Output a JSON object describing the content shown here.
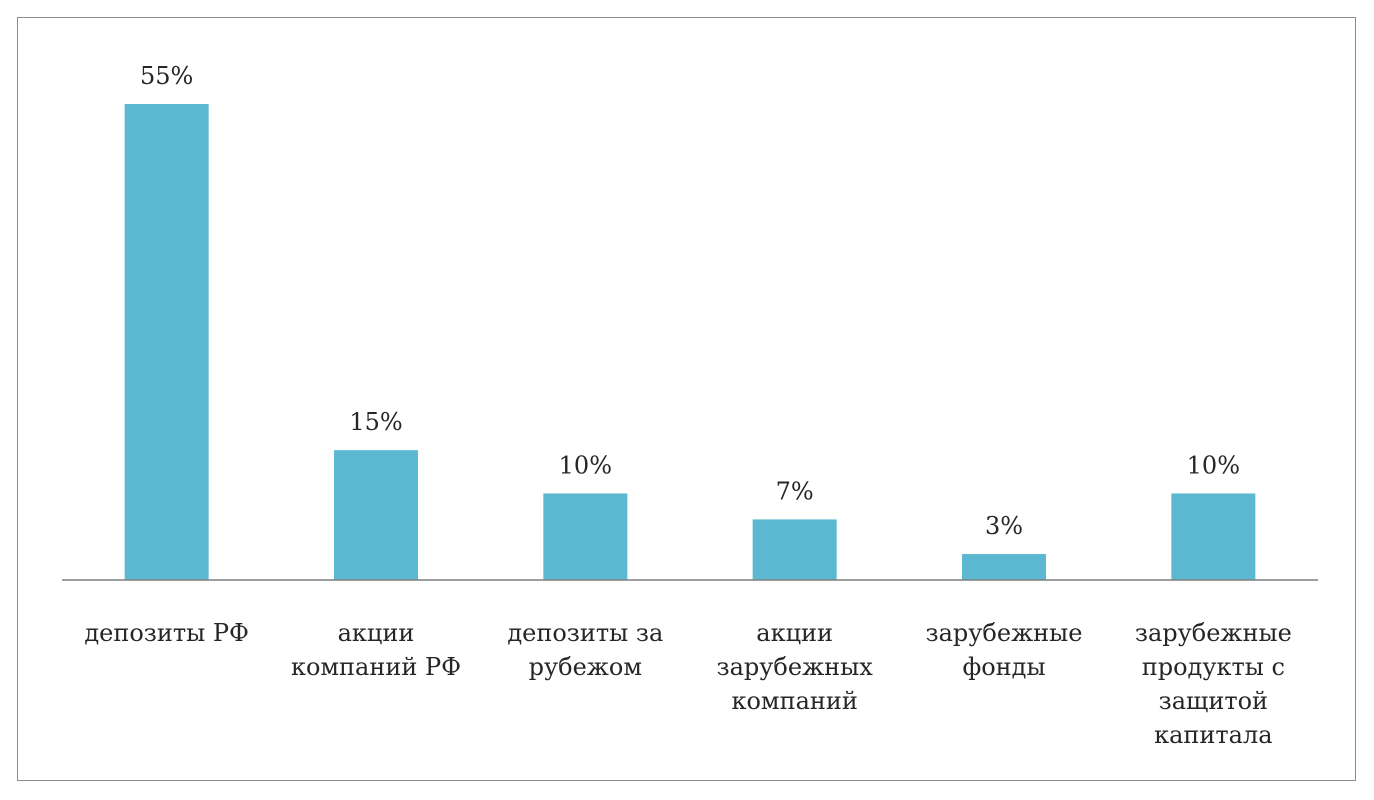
{
  "chart_data": {
    "type": "bar",
    "categories": [
      [
        "депозиты РФ"
      ],
      [
        "акции",
        "компаний РФ"
      ],
      [
        "депозиты за",
        "рубежом"
      ],
      [
        "акции",
        "зарубежных",
        "компаний"
      ],
      [
        "зарубежные",
        "фонды"
      ],
      [
        "зарубежные",
        "продукты с",
        "защитой",
        "капитала"
      ]
    ],
    "values": [
      55,
      15,
      10,
      7,
      3,
      10
    ],
    "data_labels": [
      "55%",
      "15%",
      "10%",
      "7%",
      "3%",
      "10%"
    ],
    "unit": "%",
    "ylim": [
      0,
      55
    ],
    "grid": false,
    "legend": "none",
    "bar_color": "#5bb8d0"
  }
}
